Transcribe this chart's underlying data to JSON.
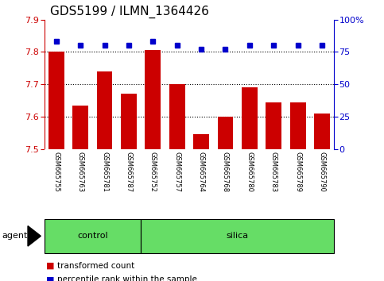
{
  "title": "GDS5199 / ILMN_1364426",
  "samples": [
    "GSM665755",
    "GSM665763",
    "GSM665781",
    "GSM665787",
    "GSM665752",
    "GSM665757",
    "GSM665764",
    "GSM665768",
    "GSM665780",
    "GSM665783",
    "GSM665789",
    "GSM665790"
  ],
  "bar_values": [
    7.8,
    7.635,
    7.74,
    7.67,
    7.805,
    7.7,
    7.545,
    7.6,
    7.69,
    7.645,
    7.643,
    7.61
  ],
  "percentile_values": [
    83,
    80,
    80,
    80,
    83,
    80,
    77,
    77,
    80,
    80,
    80,
    80
  ],
  "bar_color": "#cc0000",
  "dot_color": "#0000cc",
  "bar_bottom": 7.5,
  "ylim_left": [
    7.5,
    7.9
  ],
  "ylim_right": [
    0,
    100
  ],
  "yticks_left": [
    7.5,
    7.6,
    7.7,
    7.8,
    7.9
  ],
  "yticks_right": [
    0,
    25,
    50,
    75,
    100
  ],
  "control_samples": 4,
  "control_label": "control",
  "silica_label": "silica",
  "agent_label": "agent",
  "legend_bar_label": "transformed count",
  "legend_dot_label": "percentile rank within the sample",
  "bg_color": "#ffffff",
  "tick_bg": "#d0d0d0",
  "green_color": "#66dd66",
  "dotted_line_levels": [
    7.6,
    7.7,
    7.8
  ],
  "title_fontsize": 11,
  "tick_fontsize": 8,
  "sample_fontsize": 6,
  "label_fontsize": 8
}
